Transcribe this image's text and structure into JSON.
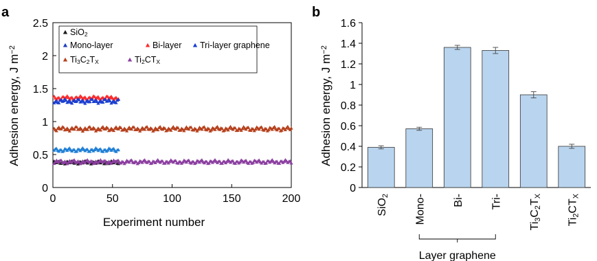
{
  "chart_data": [
    {
      "panel_label": "a",
      "type": "scatter",
      "xlabel": "Experiment number",
      "ylabel": "Adhesion energy, J m",
      "ylabel_sup": "−2",
      "xlim": [
        0,
        200
      ],
      "ylim": [
        0,
        2.5
      ],
      "xticks": [
        "0",
        "50",
        "100",
        "150",
        "200"
      ],
      "yticks": [
        "0",
        "0.5",
        "1",
        "1.5",
        "2",
        "2.5"
      ],
      "legend_position": "top-left",
      "legend": [
        {
          "label": "SiO",
          "sub": "2",
          "marker": "triangle",
          "color": "#1a1a1a"
        },
        {
          "label": "Mono-layer",
          "marker": "triangle",
          "color": "#1f3fbf"
        },
        {
          "label": "Bi-layer",
          "marker": "triangle",
          "color": "#ff2a2a"
        },
        {
          "label": "Tri-layer graphene",
          "marker": "triangle",
          "color": "#1a3fd0"
        },
        {
          "label": "Ti",
          "rich": [
            [
              "Ti",
              ""
            ],
            [
              "3",
              "sub"
            ],
            [
              "C",
              ""
            ],
            [
              "2",
              "sub"
            ],
            [
              "T",
              ""
            ],
            [
              "X",
              "sub"
            ]
          ],
          "marker": "triangle",
          "color": "#b5401c"
        },
        {
          "label": "Ti2CTX",
          "rich": [
            [
              "Ti",
              ""
            ],
            [
              "2",
              "sub"
            ],
            [
              "CT",
              ""
            ],
            [
              "X",
              "sub"
            ]
          ],
          "marker": "triangle",
          "color": "#8b3fa0"
        }
      ],
      "series": [
        {
          "key": "sio2",
          "x_start": 1,
          "x_end": 55,
          "mean": 0.38,
          "amp": 0.025,
          "color": "#1a1a1a"
        },
        {
          "key": "mono",
          "x_start": 1,
          "x_end": 55,
          "mean": 0.57,
          "amp": 0.03,
          "color": "#1f7fd6"
        },
        {
          "key": "bi",
          "x_start": 1,
          "x_end": 55,
          "mean": 1.36,
          "amp": 0.03,
          "color": "#ff2a2a"
        },
        {
          "key": "tri",
          "x_start": 1,
          "x_end": 55,
          "mean": 1.31,
          "amp": 0.035,
          "color": "#1a3fd0"
        },
        {
          "key": "ti3c2tx",
          "x_start": 1,
          "x_end": 200,
          "mean": 0.89,
          "amp": 0.035,
          "color": "#b5401c"
        },
        {
          "key": "ti2ctx",
          "x_start": 1,
          "x_end": 200,
          "mean": 0.39,
          "amp": 0.03,
          "color": "#8b3fa0"
        }
      ]
    },
    {
      "panel_label": "b",
      "type": "bar",
      "ylabel": "Adhesion energy, J m",
      "ylabel_sup": "−2",
      "ylim": [
        0,
        1.6
      ],
      "yticks": [
        "0",
        "0.2",
        "0.4",
        "0.6",
        "0.8",
        "1",
        "1.2",
        "1.4",
        "1.6"
      ],
      "categories": [
        {
          "rich": [
            [
              "SiO",
              ""
            ],
            [
              "2",
              "sub"
            ]
          ]
        },
        {
          "rich": [
            [
              "Mono-",
              ""
            ]
          ]
        },
        {
          "rich": [
            [
              "Bi-",
              ""
            ]
          ]
        },
        {
          "rich": [
            [
              "Tri-",
              ""
            ]
          ]
        },
        {
          "rich": [
            [
              "Ti",
              ""
            ],
            [
              "3",
              "sub"
            ],
            [
              "C",
              ""
            ],
            [
              "2",
              "sub"
            ],
            [
              "T",
              ""
            ],
            [
              "X",
              "sub"
            ]
          ]
        },
        {
          "rich": [
            [
              "Ti",
              ""
            ],
            [
              "2",
              "sub"
            ],
            [
              "CT",
              ""
            ],
            [
              "X",
              "sub"
            ]
          ]
        }
      ],
      "values": [
        0.39,
        0.57,
        1.36,
        1.33,
        0.9,
        0.4
      ],
      "errors": [
        0.015,
        0.015,
        0.02,
        0.03,
        0.03,
        0.02
      ],
      "bar_color": "#b9d4ee",
      "group_label": "Layer graphene",
      "group_span": [
        1,
        3
      ]
    }
  ]
}
